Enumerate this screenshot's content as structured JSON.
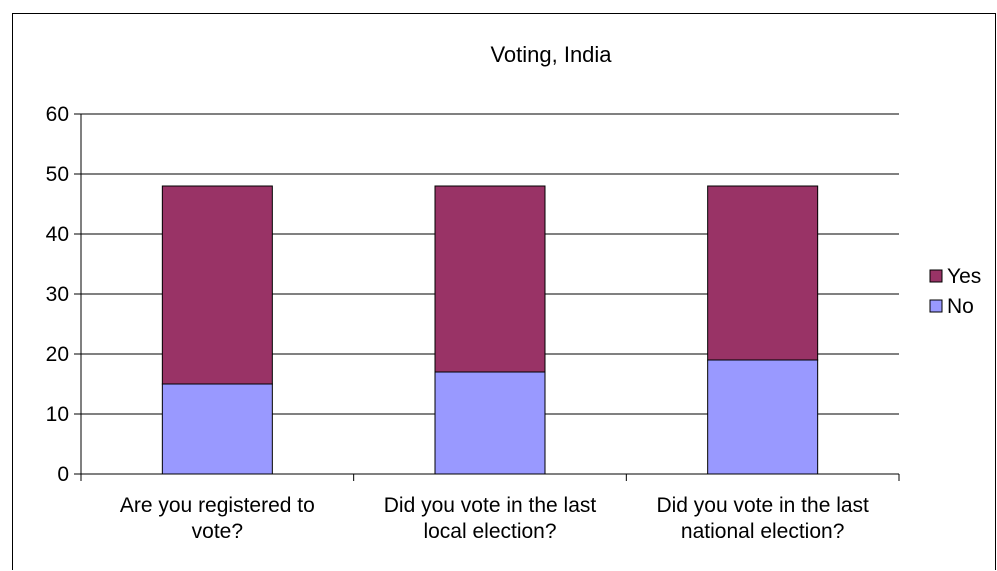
{
  "chart_data": {
    "type": "bar",
    "stacked": true,
    "title": "Voting, India",
    "xlabel": "",
    "ylabel": "",
    "ylim": [
      0,
      60
    ],
    "yticks": [
      0,
      10,
      20,
      30,
      40,
      50,
      60
    ],
    "grid": true,
    "legend_position": "right",
    "categories": [
      [
        "Are you registered to",
        "vote?"
      ],
      [
        "Did you vote in the last",
        "local election?"
      ],
      [
        "Did you vote in the last",
        "national election?"
      ]
    ],
    "series": [
      {
        "name": "No",
        "color": "#9999ff",
        "values": [
          15,
          17,
          19
        ]
      },
      {
        "name": "Yes",
        "color": "#993366",
        "values": [
          33,
          31,
          29
        ]
      }
    ],
    "legend_order": [
      "Yes",
      "No"
    ]
  }
}
